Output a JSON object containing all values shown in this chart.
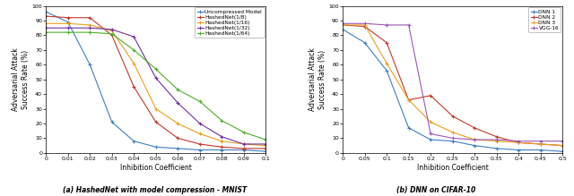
{
  "left": {
    "xlabel": "Inhibition Coefficient",
    "ylabel": "Adversarial Attack\nSuccess Rate (%)",
    "xlim": [
      0,
      0.1
    ],
    "ylim": [
      0,
      100
    ],
    "xticks": [
      0,
      0.01,
      0.02,
      0.03,
      0.04,
      0.05,
      0.06,
      0.07,
      0.08,
      0.09,
      0.1
    ],
    "yticks": [
      0,
      10,
      20,
      30,
      40,
      50,
      60,
      70,
      80,
      90,
      100
    ],
    "series": [
      {
        "label": "Uncompressed Model",
        "color": "#3F7FBF",
        "marker": "+",
        "x": [
          0,
          0.01,
          0.02,
          0.03,
          0.04,
          0.05,
          0.06,
          0.07,
          0.08,
          0.09,
          0.1
        ],
        "y": [
          96,
          89,
          60,
          21,
          8,
          4,
          3,
          2,
          2,
          2,
          1
        ]
      },
      {
        "label": "HashedNet(1/8)",
        "color": "#C0392B",
        "marker": "+",
        "x": [
          0,
          0.01,
          0.02,
          0.03,
          0.04,
          0.05,
          0.06,
          0.07,
          0.08,
          0.09,
          0.1
        ],
        "y": [
          93,
          92,
          92,
          80,
          45,
          21,
          10,
          6,
          4,
          3,
          3
        ]
      },
      {
        "label": "HashedNet(1/16)",
        "color": "#E8A020",
        "marker": "+",
        "x": [
          0,
          0.01,
          0.02,
          0.03,
          0.04,
          0.05,
          0.06,
          0.07,
          0.08,
          0.09,
          0.1
        ],
        "y": [
          88,
          88,
          87,
          83,
          61,
          30,
          20,
          13,
          8,
          6,
          5
        ]
      },
      {
        "label": "HashedNet(1/32)",
        "color": "#7030A0",
        "marker": "+",
        "x": [
          0,
          0.01,
          0.02,
          0.03,
          0.04,
          0.05,
          0.06,
          0.07,
          0.08,
          0.09,
          0.1
        ],
        "y": [
          85,
          85,
          85,
          84,
          79,
          51,
          34,
          20,
          11,
          6,
          6
        ]
      },
      {
        "label": "HashedNet(1/64)",
        "color": "#4DAF2A",
        "marker": "+",
        "x": [
          0,
          0.01,
          0.02,
          0.03,
          0.04,
          0.05,
          0.06,
          0.07,
          0.08,
          0.09,
          0.1
        ],
        "y": [
          82,
          82,
          82,
          81,
          70,
          57,
          43,
          35,
          22,
          14,
          9
        ]
      }
    ]
  },
  "right": {
    "xlabel": "Inhibition Coefficient",
    "ylabel": "Adversarial Attack\nSuccess Rate (%)",
    "xlim": [
      0,
      0.5
    ],
    "ylim": [
      0,
      100
    ],
    "xticks": [
      0,
      0.05,
      0.1,
      0.15,
      0.2,
      0.25,
      0.3,
      0.35,
      0.4,
      0.45,
      0.5
    ],
    "yticks": [
      0,
      10,
      20,
      30,
      40,
      50,
      60,
      70,
      80,
      90,
      100
    ],
    "series": [
      {
        "label": "DNN 1",
        "color": "#3F7FBF",
        "marker": "+",
        "x": [
          0,
          0.05,
          0.1,
          0.15,
          0.2,
          0.25,
          0.3,
          0.35,
          0.4,
          0.45,
          0.5
        ],
        "y": [
          84,
          75,
          56,
          17,
          9,
          8,
          5,
          3,
          2,
          2,
          1
        ]
      },
      {
        "label": "DNN 2",
        "color": "#C0392B",
        "marker": "+",
        "x": [
          0,
          0.05,
          0.1,
          0.15,
          0.2,
          0.25,
          0.3,
          0.35,
          0.4,
          0.45,
          0.5
        ],
        "y": [
          87,
          86,
          75,
          36,
          39,
          25,
          17,
          11,
          7,
          6,
          5
        ]
      },
      {
        "label": "DNN 3",
        "color": "#E8A020",
        "marker": "+",
        "x": [
          0,
          0.05,
          0.1,
          0.15,
          0.2,
          0.25,
          0.3,
          0.35,
          0.4,
          0.45,
          0.5
        ],
        "y": [
          87,
          87,
          61,
          36,
          21,
          14,
          9,
          8,
          7,
          6,
          5
        ]
      },
      {
        "label": "VGG-16",
        "color": "#9B59B6",
        "marker": "+",
        "x": [
          0,
          0.05,
          0.1,
          0.15,
          0.2,
          0.25,
          0.3,
          0.35,
          0.4,
          0.45,
          0.5
        ],
        "y": [
          88,
          88,
          87,
          87,
          13,
          10,
          9,
          9,
          8,
          8,
          8
        ]
      }
    ]
  },
  "caption_left": "(a) HashedNet with model compression - MNIST",
  "caption_right": "(b) DNN on CIFAR-10"
}
